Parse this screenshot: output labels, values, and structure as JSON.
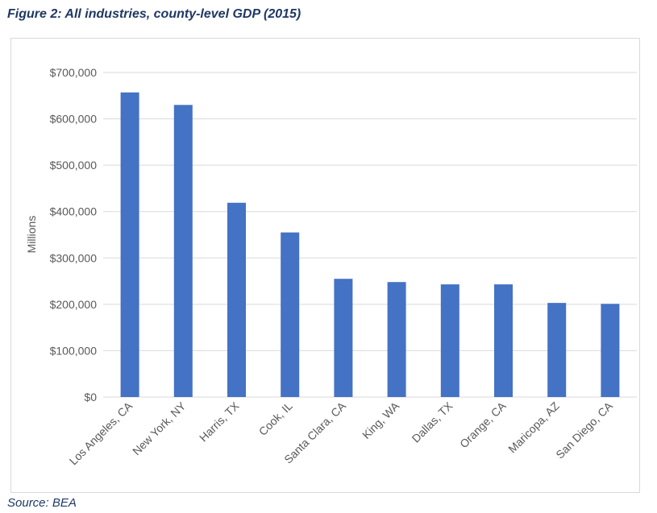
{
  "figure_title": "Figure 2: All industries, county-level GDP (2015)",
  "source_note": "Source: BEA",
  "colors": {
    "bar": "#4472c4",
    "gridline": "#d9d9d9",
    "text": "#595959",
    "title": "#1f3864"
  },
  "chart_data": {
    "type": "bar",
    "title": "",
    "xlabel": "",
    "ylabel": "Millions",
    "categories": [
      "Los Angeles, CA",
      "New York, NY",
      "Harris, TX",
      "Cook, IL",
      "Santa Clara, CA",
      "King, WA",
      "Dallas, TX",
      "Orange, CA",
      "Maricopa, AZ",
      "San Diego, CA"
    ],
    "values": [
      657000,
      630000,
      419000,
      355000,
      255000,
      248000,
      243000,
      243000,
      203000,
      201000
    ],
    "ylim": [
      0,
      700000
    ],
    "yticks": [
      0,
      100000,
      200000,
      300000,
      400000,
      500000,
      600000,
      700000
    ],
    "ytick_labels": [
      "$0",
      "$100,000",
      "$200,000",
      "$300,000",
      "$400,000",
      "$500,000",
      "$600,000",
      "$700,000"
    ],
    "grid": true,
    "legend": "none"
  }
}
